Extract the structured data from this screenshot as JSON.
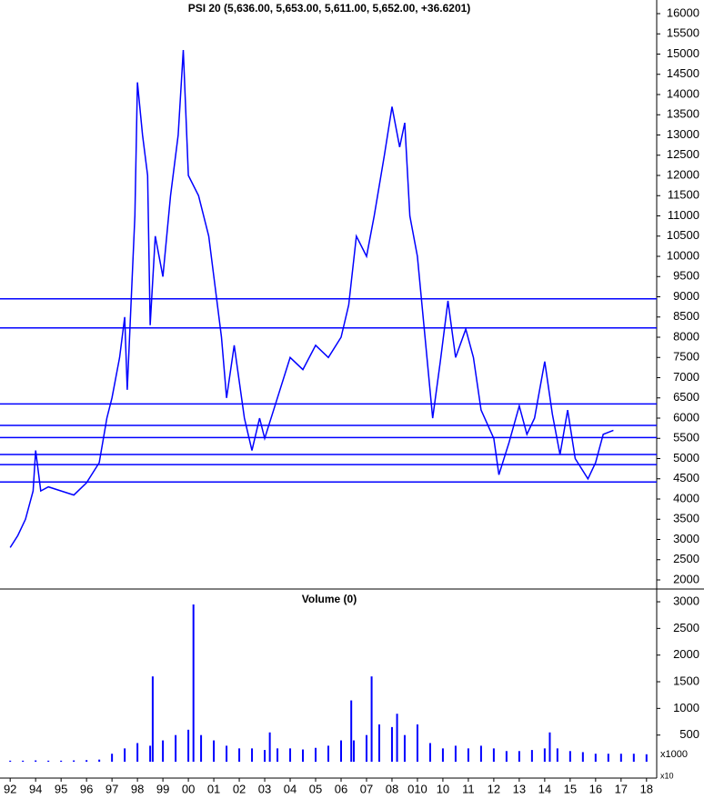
{
  "chart_data": [
    {
      "type": "line",
      "title": "PSI 20 (5,636.00, 5,653.00, 5,611.00, 5,652.00, +36.6201)",
      "color": "#0000ff",
      "x": [
        0,
        0.3,
        0.6,
        0.9,
        1.0,
        1.2,
        1.5,
        2,
        2.5,
        3,
        3.5,
        3.8,
        4,
        4.3,
        4.5,
        4.6,
        4.9,
        5.0,
        5.2,
        5.4,
        5.5,
        5.7,
        6,
        6.3,
        6.6,
        6.8,
        7,
        7.4,
        7.8,
        8,
        8.3,
        8.5,
        8.8,
        9.2,
        9.5,
        9.8,
        10,
        10.5,
        11,
        11.5,
        12,
        12.5,
        13,
        13.3,
        13.6,
        14,
        14.3,
        14.7,
        15,
        15.3,
        15.5,
        15.7,
        16,
        16.3,
        16.6,
        16.9,
        17.2,
        17.5,
        17.9,
        18.2,
        18.5,
        19,
        19.2,
        19.6,
        20,
        20.3,
        20.6,
        21,
        21.3,
        21.6,
        21.9,
        22.2,
        22.7,
        23,
        23.3,
        23.7
      ],
      "values": [
        2800,
        3100,
        3500,
        4200,
        5200,
        4200,
        4300,
        4200,
        4100,
        4400,
        4900,
        6000,
        6500,
        7500,
        8500,
        6700,
        11000,
        14300,
        13000,
        12000,
        8300,
        10500,
        9500,
        11500,
        13000,
        15100,
        12000,
        11500,
        10500,
        9500,
        8000,
        6500,
        7800,
        6000,
        5200,
        6000,
        5500,
        6500,
        7500,
        7200,
        7800,
        7500,
        8000,
        8800,
        10500,
        10000,
        11000,
        12500,
        13700,
        12700,
        13300,
        11000,
        10000,
        8000,
        6000,
        7400,
        8900,
        7500,
        8200,
        7500,
        6200,
        5500,
        4600,
        5400,
        6300,
        5600,
        6000,
        7400,
        6100,
        5100,
        6200,
        5000,
        4500,
        4900,
        5600,
        5700
      ],
      "hlines": [
        8950,
        8230,
        6350,
        5820,
        5520,
        5100,
        4850,
        4420
      ],
      "xlim": [
        -0.4,
        25.4
      ],
      "xticks": [
        {
          "value": 0,
          "label": "92"
        },
        {
          "value": 1,
          "label": "94"
        },
        {
          "value": 2,
          "label": "95"
        },
        {
          "value": 3,
          "label": "96"
        },
        {
          "value": 4,
          "label": "97"
        },
        {
          "value": 5,
          "label": "98"
        },
        {
          "value": 6,
          "label": "99"
        },
        {
          "value": 7,
          "label": "00"
        },
        {
          "value": 8,
          "label": "01"
        },
        {
          "value": 9,
          "label": "02"
        },
        {
          "value": 10,
          "label": "03"
        },
        {
          "value": 11,
          "label": "04"
        },
        {
          "value": 12,
          "label": "05"
        },
        {
          "value": 13,
          "label": "06"
        },
        {
          "value": 14,
          "label": "07"
        },
        {
          "value": 15,
          "label": "08"
        },
        {
          "value": 16,
          "label": "010"
        },
        {
          "value": 17,
          "label": "10"
        },
        {
          "value": 18,
          "label": "11"
        },
        {
          "value": 19,
          "label": "12"
        },
        {
          "value": 20,
          "label": "13"
        },
        {
          "value": 21,
          "label": "14"
        },
        {
          "value": 22,
          "label": "15"
        },
        {
          "value": 23,
          "label": "16"
        },
        {
          "value": 24,
          "label": "17"
        },
        {
          "value": 25,
          "label": "18"
        }
      ],
      "ylim": [
        1700,
        16300
      ],
      "yticks": [
        2000,
        2500,
        3000,
        3500,
        4000,
        4500,
        5000,
        5500,
        6000,
        6500,
        7000,
        7500,
        8000,
        8500,
        9000,
        9500,
        10000,
        10500,
        11000,
        11500,
        12000,
        12500,
        13000,
        13500,
        14000,
        14500,
        15000,
        15500,
        16000
      ]
    },
    {
      "type": "bar",
      "title": "Volume (0)",
      "color": "#0000ff",
      "x": [
        0,
        0.5,
        1,
        1.5,
        2,
        2.5,
        3,
        3.5,
        4,
        4.5,
        5,
        5.5,
        5.6,
        6,
        6.5,
        7,
        7.2,
        7.5,
        8,
        8.5,
        9,
        9.5,
        10,
        10.2,
        10.5,
        11,
        11.5,
        12,
        12.5,
        13,
        13.4,
        13.5,
        14,
        14.2,
        14.5,
        15,
        15.2,
        15.5,
        16,
        16.5,
        17,
        17.5,
        18,
        18.5,
        19,
        19.5,
        20,
        20.5,
        21,
        21.2,
        21.5,
        22,
        22.5,
        23,
        23.5,
        24,
        24.5,
        25
      ],
      "values": [
        20,
        20,
        25,
        20,
        20,
        25,
        30,
        40,
        150,
        250,
        350,
        300,
        1600,
        400,
        500,
        600,
        2950,
        500,
        400,
        300,
        250,
        250,
        220,
        550,
        250,
        250,
        230,
        260,
        300,
        400,
        1150,
        400,
        500,
        1600,
        700,
        650,
        900,
        500,
        700,
        350,
        250,
        300,
        250,
        300,
        250,
        200,
        200,
        220,
        250,
        550,
        250,
        200,
        180,
        150,
        150,
        150,
        150,
        140
      ],
      "ylim": [
        0,
        3200
      ],
      "yticks": [
        500,
        1000,
        1500,
        2000,
        2500,
        3000
      ],
      "unit_label": "x1000",
      "axis_note": "x10"
    }
  ]
}
